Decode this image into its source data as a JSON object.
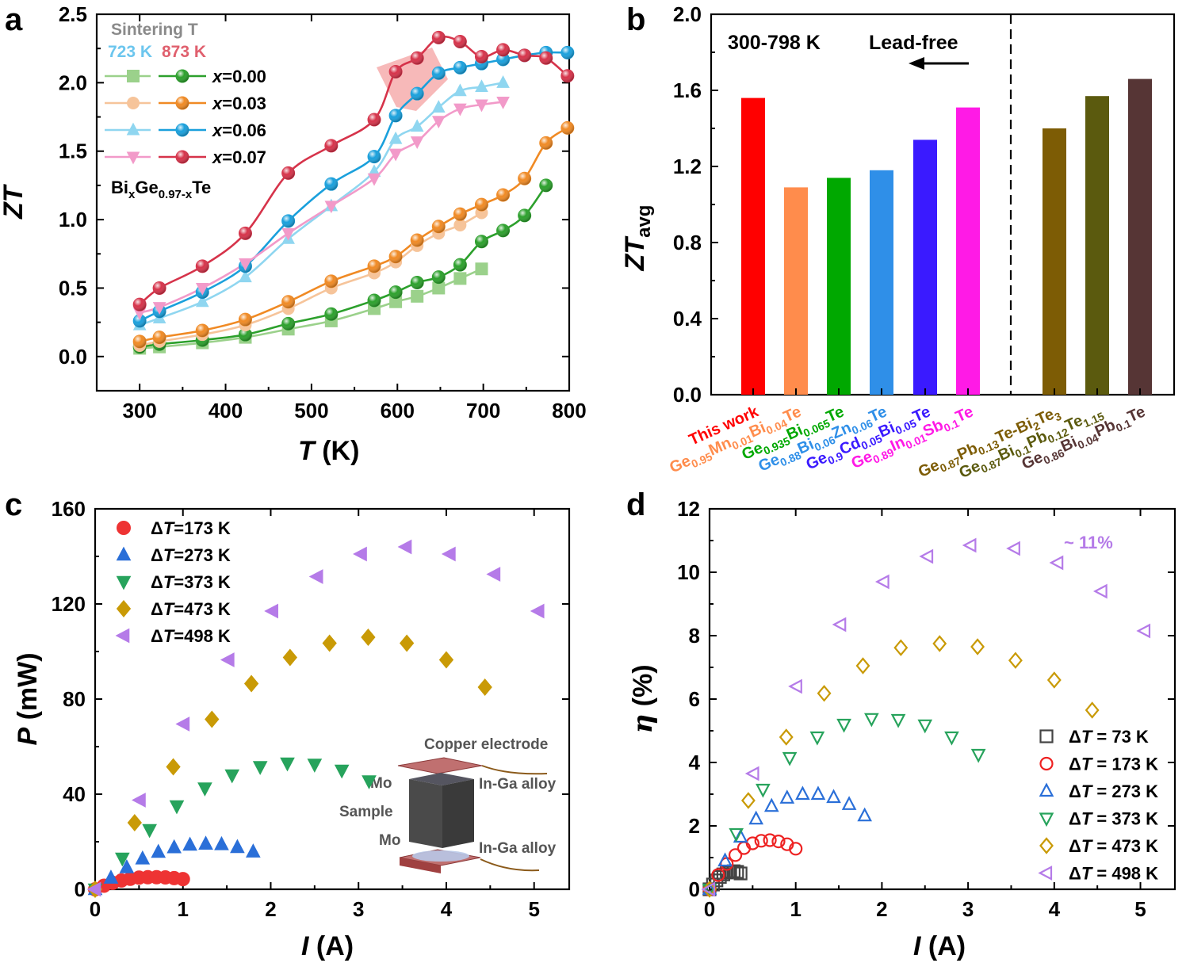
{
  "chart_data": [
    {
      "panel": "a",
      "type": "line",
      "xlabel_italic": "T",
      "xlabel_rest": " (K)",
      "ylabel": "ZT",
      "xlim": [
        250,
        800
      ],
      "ylim": [
        -0.25,
        2.5
      ],
      "xticks": [
        300,
        400,
        500,
        600,
        700,
        800
      ],
      "xtick_labels": [
        "300",
        "400",
        "500",
        "600",
        "700",
        "800"
      ],
      "yticks": [
        0.0,
        0.5,
        1.0,
        1.5,
        2.0,
        2.5
      ],
      "ytick_labels": [
        "0.0",
        "0.5",
        "1.0",
        "1.5",
        "2.0",
        "2.5"
      ],
      "legend_header": "Sintering T",
      "legend_sub_723": "723 K",
      "legend_sub_873": "873 K",
      "formula": "BixGe0.97-xTe",
      "x": [
        300,
        323,
        373,
        423,
        473,
        523,
        573,
        598,
        623,
        648,
        673,
        698,
        723,
        748,
        773,
        798
      ],
      "series": [
        {
          "name": "x=0.00",
          "temp": "723 K",
          "color": "#9bd18b",
          "marker": "square",
          "x": [
            300,
            323,
            373,
            423,
            473,
            523,
            573,
            598,
            623,
            648,
            673,
            698
          ],
          "values": [
            0.06,
            0.07,
            0.1,
            0.14,
            0.2,
            0.26,
            0.35,
            0.4,
            0.44,
            0.5,
            0.57,
            0.64
          ]
        },
        {
          "name": "x=0.00",
          "temp": "873 K",
          "color": "#2ca02c",
          "marker": "sphere",
          "x": [
            300,
            323,
            373,
            423,
            473,
            523,
            573,
            598,
            623,
            648,
            673,
            698,
            723,
            748,
            773
          ],
          "values": [
            0.07,
            0.09,
            0.12,
            0.16,
            0.24,
            0.31,
            0.41,
            0.47,
            0.54,
            0.58,
            0.67,
            0.84,
            0.92,
            1.03,
            1.25
          ]
        },
        {
          "name": "x=0.03",
          "temp": "723 K",
          "color": "#f6c49a",
          "marker": "circle",
          "x": [
            300,
            323,
            373,
            423,
            473,
            523,
            573,
            598,
            623,
            648,
            673,
            698
          ],
          "values": [
            0.08,
            0.11,
            0.16,
            0.23,
            0.35,
            0.5,
            0.61,
            0.69,
            0.81,
            0.9,
            0.96,
            1.05
          ]
        },
        {
          "name": "x=0.03",
          "temp": "873 K",
          "color": "#f08a24",
          "marker": "sphere",
          "x": [
            300,
            323,
            373,
            423,
            473,
            523,
            573,
            598,
            623,
            648,
            673,
            698,
            723,
            748,
            773,
            798
          ],
          "values": [
            0.11,
            0.14,
            0.19,
            0.27,
            0.4,
            0.55,
            0.66,
            0.73,
            0.85,
            0.95,
            1.04,
            1.11,
            1.18,
            1.3,
            1.56,
            1.67
          ]
        },
        {
          "name": "x=0.06",
          "temp": "723 K",
          "color": "#8fd6f0",
          "marker": "triangle",
          "x": [
            300,
            323,
            373,
            423,
            473,
            523,
            573,
            598,
            623,
            648,
            673,
            698,
            723
          ],
          "values": [
            0.23,
            0.28,
            0.4,
            0.58,
            0.86,
            1.1,
            1.35,
            1.59,
            1.68,
            1.82,
            1.94,
            1.97,
            2.0
          ]
        },
        {
          "name": "x=0.06",
          "temp": "873 K",
          "color": "#1aa0dc",
          "marker": "sphere",
          "x": [
            300,
            323,
            373,
            423,
            473,
            523,
            573,
            598,
            623,
            648,
            673,
            698,
            723,
            748,
            773,
            798
          ],
          "values": [
            0.26,
            0.33,
            0.47,
            0.66,
            0.99,
            1.26,
            1.46,
            1.76,
            1.92,
            2.07,
            2.11,
            2.14,
            2.17,
            2.2,
            2.22,
            2.22
          ]
        },
        {
          "name": "x=0.07",
          "temp": "723 K",
          "color": "#f29ac9",
          "marker": "invtriangle",
          "x": [
            300,
            323,
            373,
            423,
            473,
            523,
            573,
            598,
            623,
            648,
            673,
            698,
            723
          ],
          "values": [
            0.32,
            0.36,
            0.5,
            0.68,
            0.9,
            1.1,
            1.3,
            1.48,
            1.57,
            1.72,
            1.81,
            1.84,
            1.86
          ]
        },
        {
          "name": "x=0.07",
          "temp": "873 K",
          "color": "#d6334a",
          "marker": "sphere",
          "x": [
            300,
            323,
            373,
            423,
            473,
            523,
            573,
            598,
            623,
            648,
            673,
            698,
            723,
            748,
            773,
            798
          ],
          "values": [
            0.38,
            0.5,
            0.66,
            0.9,
            1.34,
            1.54,
            1.73,
            2.08,
            2.18,
            2.33,
            2.3,
            2.19,
            2.24,
            2.2,
            2.18,
            2.05
          ]
        }
      ]
    },
    {
      "panel": "b",
      "type": "bar",
      "ylabel_main": "ZT",
      "ylabel_sub": "avg",
      "ylim": [
        0,
        2.0
      ],
      "yticks": [
        0.0,
        0.4,
        0.8,
        1.2,
        1.6,
        2.0
      ],
      "ytick_labels": [
        "0.0",
        "0.4",
        "0.8",
        "1.2",
        "1.6",
        "2.0"
      ],
      "range_text": "300-798 K",
      "lead_free_text": "Lead-free",
      "categories": [
        {
          "label": "This work",
          "value": 1.56,
          "color": "#ff0000"
        },
        {
          "label": "Ge0.95Mn0.01Bi0.04Te",
          "value": 1.09,
          "color": "#ff8c4c"
        },
        {
          "label": "Ge0.935Bi0.065Te",
          "value": 1.14,
          "color": "#00a800"
        },
        {
          "label": "Ge0.88Bi0.06Zn0.06Te",
          "value": 1.18,
          "color": "#2f8fe8"
        },
        {
          "label": "Ge0.9Cd0.05Bi0.05Te",
          "value": 1.34,
          "color": "#3a1aff"
        },
        {
          "label": "Ge0.89In0.01Sb0.1Te",
          "value": 1.51,
          "color": "#ff1ae6"
        },
        {
          "label": "Ge0.87Pb0.13Te-Bi2Te3",
          "value": 1.4,
          "color": "#7d5c05"
        },
        {
          "label": "Ge0.87Bi0.1Pb0.12Te1.15",
          "value": 1.57,
          "color": "#5b5a0e"
        },
        {
          "label": "Ge0.86Bi0.04Pb0.1Te",
          "value": 1.66,
          "color": "#563535"
        }
      ],
      "label_rich": [
        [
          [
            "This work",
            ""
          ]
        ],
        [
          [
            "Ge",
            ""
          ],
          [
            "0.95",
            "sub"
          ],
          [
            "Mn",
            ""
          ],
          [
            "0.01",
            "sub"
          ],
          [
            "Bi",
            ""
          ],
          [
            "0.04",
            "sub"
          ],
          [
            "Te",
            ""
          ]
        ],
        [
          [
            "Ge",
            ""
          ],
          [
            "0.935",
            "sub"
          ],
          [
            "Bi",
            ""
          ],
          [
            "0.065",
            "sub"
          ],
          [
            "Te",
            ""
          ]
        ],
        [
          [
            "Ge",
            ""
          ],
          [
            "0.88",
            "sub"
          ],
          [
            "Bi",
            ""
          ],
          [
            "0.06",
            "sub"
          ],
          [
            "Zn",
            ""
          ],
          [
            "0.06",
            "sub"
          ],
          [
            "Te",
            ""
          ]
        ],
        [
          [
            "Ge",
            ""
          ],
          [
            "0.9",
            "sub"
          ],
          [
            "Cd",
            ""
          ],
          [
            "0.05",
            "sub"
          ],
          [
            "Bi",
            ""
          ],
          [
            "0.05",
            "sub"
          ],
          [
            "Te",
            ""
          ]
        ],
        [
          [
            "Ge",
            ""
          ],
          [
            "0.89",
            "sub"
          ],
          [
            "In",
            ""
          ],
          [
            "0.01",
            "sub"
          ],
          [
            "Sb",
            ""
          ],
          [
            "0.1",
            "sub"
          ],
          [
            "Te",
            ""
          ]
        ],
        [
          [
            "Ge",
            ""
          ],
          [
            "0.87",
            "sub"
          ],
          [
            "Pb",
            ""
          ],
          [
            "0.13",
            "sub"
          ],
          [
            "Te-Bi",
            ""
          ],
          [
            "2",
            "sub"
          ],
          [
            "Te",
            ""
          ],
          [
            "3",
            "sub"
          ]
        ],
        [
          [
            "Ge",
            ""
          ],
          [
            "0.87",
            "sub"
          ],
          [
            "Bi",
            ""
          ],
          [
            "0.1",
            "sub"
          ],
          [
            "Pb",
            ""
          ],
          [
            "0.12",
            "sub"
          ],
          [
            "Te",
            ""
          ],
          [
            "1.15",
            "sub"
          ]
        ],
        [
          [
            "Ge",
            ""
          ],
          [
            "0.86",
            "sub"
          ],
          [
            "Bi",
            ""
          ],
          [
            "0.04",
            "sub"
          ],
          [
            "Pb",
            ""
          ],
          [
            "0.1",
            "sub"
          ],
          [
            "Te",
            ""
          ]
        ]
      ]
    },
    {
      "panel": "c",
      "type": "scatter",
      "xlabel_italic": "I",
      "xlabel_rest": " (A)",
      "ylabel_italic": "P",
      "ylabel_rest": " (mW)",
      "xlim": [
        0,
        5.4
      ],
      "ylim": [
        0,
        160
      ],
      "xticks": [
        0,
        1,
        2,
        3,
        4,
        5
      ],
      "xtick_labels": [
        "0",
        "1",
        "2",
        "3",
        "4",
        "5"
      ],
      "yticks": [
        0,
        40,
        80,
        120,
        160
      ],
      "ytick_labels": [
        "0",
        "40",
        "80",
        "120",
        "160"
      ],
      "inset_labels": {
        "copper": "Copper electrode",
        "mo_top": "Mo",
        "ingа_top": "In-Ga alloy",
        "sample": "Sample",
        "mo_bottom": "Mo",
        "inga_bottom": "In-Ga alloy"
      },
      "series": [
        {
          "name": "ΔT=173 K",
          "color": "#ee3333",
          "marker": "circle",
          "x": [
            0,
            0.1,
            0.2,
            0.3,
            0.4,
            0.5,
            0.6,
            0.7,
            0.8,
            0.9,
            1.0
          ],
          "values": [
            0,
            1.5,
            2.7,
            3.7,
            4.4,
            4.9,
            5.1,
            5.1,
            5.0,
            4.7,
            4.3
          ]
        },
        {
          "name": "ΔT=273 K",
          "color": "#2a6fd8",
          "marker": "triangle",
          "x": [
            0,
            0.18,
            0.36,
            0.54,
            0.72,
            0.9,
            1.08,
            1.26,
            1.44,
            1.62,
            1.8
          ],
          "values": [
            0,
            4.8,
            9.2,
            12.9,
            15.7,
            17.6,
            18.7,
            19.1,
            18.9,
            17.7,
            15.8
          ]
        },
        {
          "name": "ΔT=373 K",
          "color": "#27a35c",
          "marker": "invtriangle",
          "x": [
            0,
            0.31,
            0.62,
            0.93,
            1.25,
            1.56,
            1.88,
            2.19,
            2.5,
            2.81,
            3.12
          ],
          "values": [
            0,
            13.0,
            25.0,
            35.0,
            42.5,
            48.0,
            51.5,
            53.0,
            52.5,
            50.0,
            45.5
          ]
        },
        {
          "name": "ΔT=473 K",
          "color": "#c99a06",
          "marker": "diamond",
          "x": [
            0,
            0.45,
            0.89,
            1.33,
            1.78,
            2.22,
            2.67,
            3.11,
            3.55,
            4.0,
            4.44
          ],
          "values": [
            0,
            28.0,
            51.5,
            71.5,
            86.5,
            97.5,
            103.5,
            106.0,
            103.5,
            96.5,
            85.0
          ]
        },
        {
          "name": "ΔT=498 K",
          "color": "#b57be8",
          "marker": "lefttriangle",
          "x": [
            0,
            0.51,
            1.01,
            1.52,
            2.02,
            2.53,
            3.03,
            3.54,
            4.04,
            4.55,
            5.05
          ],
          "values": [
            0,
            37.5,
            69.5,
            96.5,
            117.0,
            131.5,
            141.0,
            144.0,
            141.0,
            132.5,
            117.0
          ]
        }
      ]
    },
    {
      "panel": "d",
      "type": "scatter",
      "xlabel_italic": "I",
      "xlabel_rest": " (A)",
      "ylabel_italic": "η",
      "ylabel_rest": " (%)",
      "xlim": [
        0,
        5.4
      ],
      "ylim": [
        0,
        12
      ],
      "xticks": [
        0,
        1,
        2,
        3,
        4,
        5
      ],
      "xtick_labels": [
        "0",
        "1",
        "2",
        "3",
        "4",
        "5"
      ],
      "yticks": [
        0,
        2,
        4,
        6,
        8,
        10,
        12
      ],
      "ytick_labels": [
        "0",
        "2",
        "4",
        "6",
        "8",
        "10",
        "12"
      ],
      "annotation": "~ 11%",
      "series": [
        {
          "name": "ΔT = 73 K",
          "color": "#444444",
          "marker": "square",
          "x": [
            0,
            0.04,
            0.08,
            0.12,
            0.16,
            0.2,
            0.24,
            0.28,
            0.32,
            0.36
          ],
          "values": [
            0,
            0.15,
            0.28,
            0.39,
            0.47,
            0.53,
            0.56,
            0.57,
            0.55,
            0.5
          ]
        },
        {
          "name": "ΔT = 173 K",
          "color": "#ee2222",
          "marker": "circle",
          "x": [
            0,
            0.1,
            0.2,
            0.3,
            0.4,
            0.5,
            0.6,
            0.7,
            0.8,
            0.9,
            1.0
          ],
          "values": [
            0,
            0.45,
            0.8,
            1.08,
            1.3,
            1.45,
            1.53,
            1.55,
            1.51,
            1.42,
            1.28
          ]
        },
        {
          "name": "ΔT = 273 K",
          "color": "#2a6fd8",
          "marker": "triangle",
          "x": [
            0,
            0.18,
            0.36,
            0.54,
            0.72,
            0.9,
            1.08,
            1.26,
            1.44,
            1.62,
            1.8
          ],
          "values": [
            0,
            0.9,
            1.65,
            2.22,
            2.62,
            2.88,
            3.0,
            3.0,
            2.9,
            2.68,
            2.32
          ]
        },
        {
          "name": "ΔT = 373 K",
          "color": "#27a35c",
          "marker": "invtriangle",
          "x": [
            0,
            0.31,
            0.62,
            0.93,
            1.25,
            1.56,
            1.88,
            2.19,
            2.5,
            2.81,
            3.12
          ],
          "values": [
            0,
            1.75,
            3.15,
            4.15,
            4.8,
            5.2,
            5.38,
            5.35,
            5.18,
            4.8,
            4.25
          ]
        },
        {
          "name": "ΔT = 473 K",
          "color": "#c99a06",
          "marker": "diamond",
          "x": [
            0,
            0.45,
            0.89,
            1.33,
            1.78,
            2.22,
            2.67,
            3.11,
            3.55,
            4.0,
            4.44
          ],
          "values": [
            0,
            2.8,
            4.8,
            6.18,
            7.05,
            7.62,
            7.75,
            7.65,
            7.22,
            6.6,
            5.65
          ]
        },
        {
          "name": "ΔT = 498 K",
          "color": "#b57be8",
          "marker": "lefttriangle",
          "x": [
            0,
            0.51,
            1.01,
            1.52,
            2.02,
            2.53,
            3.03,
            3.54,
            4.04,
            4.55,
            5.05
          ],
          "values": [
            0,
            3.65,
            6.4,
            8.35,
            9.7,
            10.5,
            10.85,
            10.75,
            10.3,
            9.4,
            8.15
          ]
        }
      ]
    }
  ],
  "panel_labels": [
    "a",
    "b",
    "c",
    "d"
  ]
}
